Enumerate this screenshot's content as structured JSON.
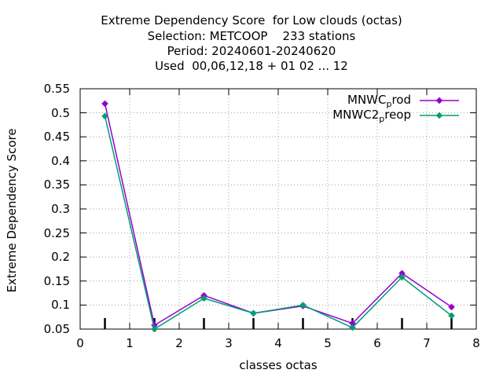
{
  "chart_data": {
    "type": "line",
    "title_lines": [
      "Extreme Dependency Score  for Low clouds (octas)",
      "Selection: METCOOP    233 stations",
      "Period: 20240601-20240620",
      "Used  00,06,12,18 + 01 02 ... 12"
    ],
    "xlabel": "classes octas",
    "ylabel": "Extreme Dependency Score",
    "xlim": [
      0,
      8
    ],
    "ylim": [
      0.05,
      0.55
    ],
    "xticks": [
      "0",
      "1",
      "2",
      "3",
      "4",
      "5",
      "6",
      "7",
      "8"
    ],
    "yticks": [
      "0.05",
      "0.1",
      "0.15",
      "0.2",
      "0.25",
      "0.3",
      "0.35",
      "0.4",
      "0.45",
      "0.5",
      "0.55"
    ],
    "grid": true,
    "legend_position": "top-right",
    "x": [
      0.5,
      1.5,
      2.5,
      3.5,
      4.5,
      5.5,
      6.5,
      7.5
    ],
    "series": [
      {
        "name_main": "MNWC",
        "name_sub": "p",
        "name_tail": "rod",
        "color": "#9400d3",
        "values": [
          0.519,
          0.058,
          0.12,
          0.083,
          0.098,
          0.062,
          0.166,
          0.096
        ]
      },
      {
        "name_main": "MNWC2",
        "name_sub": "p",
        "name_tail": "reop",
        "color": "#009e73",
        "values": [
          0.493,
          0.05,
          0.114,
          0.083,
          0.1,
          0.053,
          0.158,
          0.078
        ]
      }
    ]
  }
}
